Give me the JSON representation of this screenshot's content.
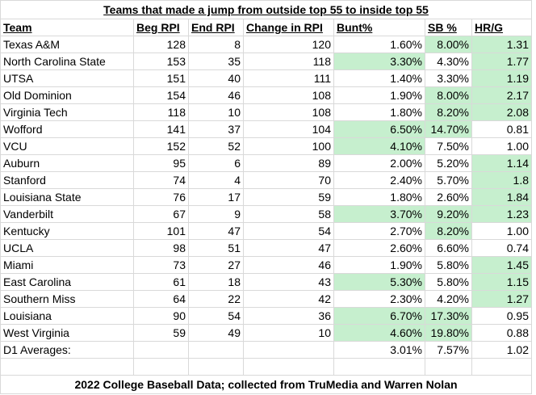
{
  "title": "Teams that made a jump from outside top 55 to inside top 55",
  "headers": [
    "Team",
    "Beg RPI",
    "End RPI",
    "Change in RPI",
    "Bunt%",
    "SB %",
    "HR/G"
  ],
  "rows": [
    {
      "team": "Texas A&M",
      "beg": "128",
      "end": "8",
      "change": "120",
      "bunt": "1.60%",
      "sb": "8.00%",
      "hr": "1.31",
      "hl": [
        false,
        true,
        true
      ]
    },
    {
      "team": "North Carolina State",
      "beg": "153",
      "end": "35",
      "change": "118",
      "bunt": "3.30%",
      "sb": "4.30%",
      "hr": "1.77",
      "hl": [
        true,
        false,
        true
      ]
    },
    {
      "team": "UTSA",
      "beg": "151",
      "end": "40",
      "change": "111",
      "bunt": "1.40%",
      "sb": "3.30%",
      "hr": "1.19",
      "hl": [
        false,
        false,
        true
      ]
    },
    {
      "team": "Old Dominion",
      "beg": "154",
      "end": "46",
      "change": "108",
      "bunt": "1.90%",
      "sb": "8.00%",
      "hr": "2.17",
      "hl": [
        false,
        true,
        true
      ]
    },
    {
      "team": "Virginia Tech",
      "beg": "118",
      "end": "10",
      "change": "108",
      "bunt": "1.80%",
      "sb": "8.20%",
      "hr": "2.08",
      "hl": [
        false,
        true,
        true
      ]
    },
    {
      "team": "Wofford",
      "beg": "141",
      "end": "37",
      "change": "104",
      "bunt": "6.50%",
      "sb": "14.70%",
      "hr": "0.81",
      "hl": [
        true,
        true,
        false
      ]
    },
    {
      "team": "VCU",
      "beg": "152",
      "end": "52",
      "change": "100",
      "bunt": "4.10%",
      "sb": "7.50%",
      "hr": "1.00",
      "hl": [
        true,
        false,
        false
      ]
    },
    {
      "team": "Auburn",
      "beg": "95",
      "end": "6",
      "change": "89",
      "bunt": "2.00%",
      "sb": "5.20%",
      "hr": "1.14",
      "hl": [
        false,
        false,
        true
      ]
    },
    {
      "team": "Stanford",
      "beg": "74",
      "end": "4",
      "change": "70",
      "bunt": "2.40%",
      "sb": "5.70%",
      "hr": "1.8",
      "hl": [
        false,
        false,
        true
      ]
    },
    {
      "team": "Louisiana State",
      "beg": "76",
      "end": "17",
      "change": "59",
      "bunt": "1.80%",
      "sb": "2.60%",
      "hr": "1.84",
      "hl": [
        false,
        false,
        true
      ]
    },
    {
      "team": "Vanderbilt",
      "beg": "67",
      "end": "9",
      "change": "58",
      "bunt": "3.70%",
      "sb": "9.20%",
      "hr": "1.23",
      "hl": [
        true,
        true,
        true
      ]
    },
    {
      "team": "Kentucky",
      "beg": "101",
      "end": "47",
      "change": "54",
      "bunt": "2.70%",
      "sb": "8.20%",
      "hr": "1.00",
      "hl": [
        false,
        true,
        false
      ]
    },
    {
      "team": "UCLA",
      "beg": "98",
      "end": "51",
      "change": "47",
      "bunt": "2.60%",
      "sb": "6.60%",
      "hr": "0.74",
      "hl": [
        false,
        false,
        false
      ]
    },
    {
      "team": "Miami",
      "beg": "73",
      "end": "27",
      "change": "46",
      "bunt": "1.90%",
      "sb": "5.80%",
      "hr": "1.45",
      "hl": [
        false,
        false,
        true
      ]
    },
    {
      "team": "East Carolina",
      "beg": "61",
      "end": "18",
      "change": "43",
      "bunt": "5.30%",
      "sb": "5.80%",
      "hr": "1.15",
      "hl": [
        true,
        false,
        true
      ]
    },
    {
      "team": "Southern Miss",
      "beg": "64",
      "end": "22",
      "change": "42",
      "bunt": "2.30%",
      "sb": "4.20%",
      "hr": "1.27",
      "hl": [
        false,
        false,
        true
      ]
    },
    {
      "team": "Louisiana",
      "beg": "90",
      "end": "54",
      "change": "36",
      "bunt": "6.70%",
      "sb": "17.30%",
      "hr": "0.95",
      "hl": [
        true,
        true,
        false
      ]
    },
    {
      "team": "West Virginia",
      "beg": "59",
      "end": "49",
      "change": "10",
      "bunt": "4.60%",
      "sb": "19.80%",
      "hr": "0.88",
      "hl": [
        true,
        true,
        false
      ]
    }
  ],
  "averages": {
    "label": "D1 Averages:",
    "bunt": "3.01%",
    "sb": "7.57%",
    "hr": "1.02"
  },
  "footer": "2022 College Baseball Data; collected from TruMedia and Warren Nolan",
  "colors": {
    "highlight": "#c6efce",
    "gridline": "#d9d9d9"
  }
}
